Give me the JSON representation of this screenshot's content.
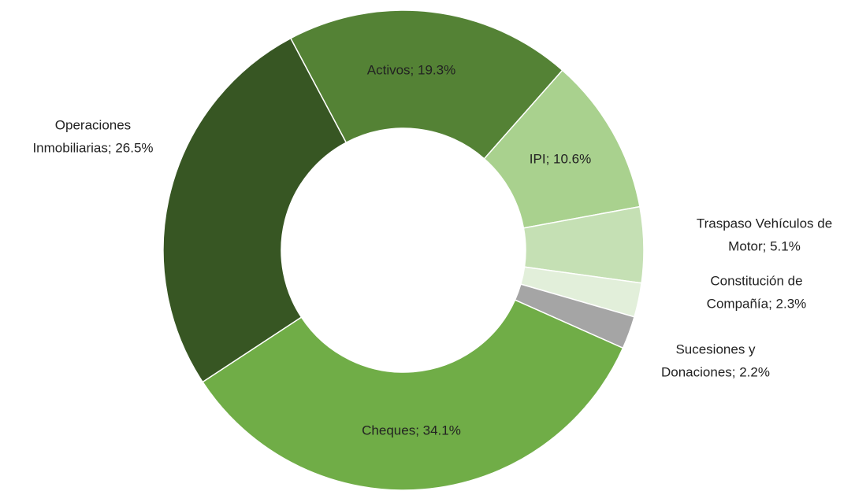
{
  "chart_data": {
    "type": "donut",
    "values": [
      19.3,
      10.6,
      5.1,
      2.3,
      2.2,
      34.1,
      26.5
    ],
    "value_labels": [
      [
        "Activos; 19.3%"
      ],
      [
        "IPI; 10.6%"
      ],
      [
        "Traspaso Vehículos de",
        "Motor; 5.1%"
      ],
      [
        "Constitución de",
        "Compañía; 2.3%"
      ],
      [
        "Sucesiones y",
        "Donaciones; 2.2%"
      ],
      [
        "Cheques; 34.1%"
      ],
      [
        "Operaciones",
        "Inmobiliarias; 26.5%"
      ]
    ],
    "colors": [
      "#548235",
      "#a9d18e",
      "#c5e0b4",
      "#e2efda",
      "#a5a5a5",
      "#70ad47",
      "#375623"
    ]
  }
}
